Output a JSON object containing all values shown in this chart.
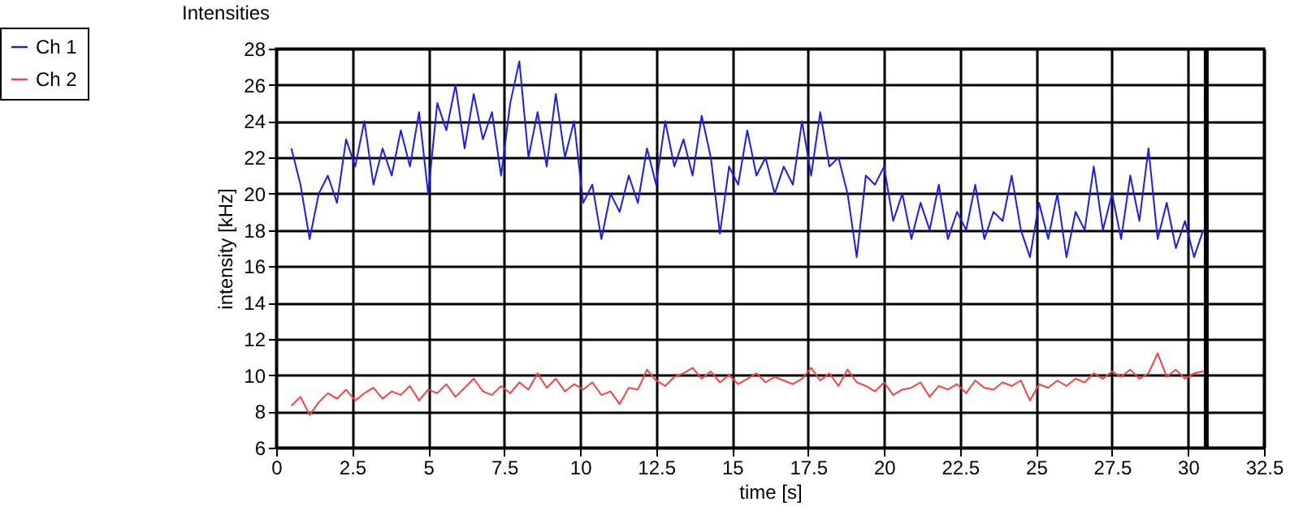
{
  "chart_data": {
    "type": "line",
    "title": "Intensities",
    "xlabel": "time [s]",
    "ylabel": "intensity [kHz]",
    "xlim": [
      0,
      32.5
    ],
    "xticks": [
      0,
      2.5,
      5,
      7.5,
      10,
      12.5,
      15,
      17.5,
      20,
      22.5,
      25,
      27.5,
      30,
      32.5
    ],
    "ylim": [
      6,
      28
    ],
    "yticks": [
      6,
      8,
      10,
      12,
      14,
      16,
      18,
      20,
      22,
      24,
      26,
      28
    ],
    "grid": true,
    "legend": "top left",
    "marker": "none",
    "line_style": "solid",
    "x": [
      0.5,
      0.8,
      1.1,
      1.4,
      1.7,
      2,
      2.3,
      2.6,
      2.9,
      3.2,
      3.5,
      3.8,
      4.1,
      4.4,
      4.7,
      5,
      5.3,
      5.6,
      5.9,
      6.2,
      6.5,
      6.8,
      7.1,
      7.4,
      7.7,
      8,
      8.3,
      8.6,
      8.9,
      9.2,
      9.5,
      9.8,
      10.1,
      10.4,
      10.7,
      11,
      11.3,
      11.6,
      11.9,
      12.2,
      12.5,
      12.8,
      13.1,
      13.4,
      13.7,
      14,
      14.3,
      14.6,
      14.9,
      15.2,
      15.5,
      15.8,
      16.1,
      16.4,
      16.7,
      17,
      17.3,
      17.6,
      17.9,
      18.2,
      18.5,
      18.8,
      19.1,
      19.4,
      19.7,
      20,
      20.3,
      20.6,
      20.9,
      21.2,
      21.5,
      21.8,
      22.1,
      22.4,
      22.7,
      23,
      23.3,
      23.6,
      23.9,
      24.2,
      24.5,
      24.8,
      25.1,
      25.4,
      25.7,
      26,
      26.3,
      26.6,
      26.9,
      27.2,
      27.5,
      27.8,
      28.1,
      28.4,
      28.7,
      29,
      29.3,
      29.6,
      29.9,
      30.2,
      30.5
    ],
    "series": [
      {
        "name": "Ch 1",
        "color": "#1a1aff",
        "values": [
          22.5,
          20.5,
          17.5,
          20,
          21,
          19.5,
          23,
          21.5,
          24,
          20.5,
          22.5,
          21,
          23.5,
          21.5,
          24.5,
          20,
          25,
          23.5,
          26,
          22.5,
          25.5,
          23,
          24.5,
          21,
          25,
          27.3,
          22,
          24.5,
          21.5,
          25.5,
          22,
          24,
          19.5,
          20.5,
          17.5,
          20,
          19,
          21,
          19.5,
          22.5,
          20.5,
          24,
          21.5,
          23,
          21,
          24.3,
          22,
          17.8,
          21.5,
          20.5,
          23.5,
          21,
          22,
          20,
          21.5,
          20.5,
          24,
          21,
          24.5,
          21.5,
          22,
          20,
          16.5,
          21,
          20.5,
          21.5,
          18.5,
          20,
          17.5,
          19.5,
          18,
          20.5,
          17.5,
          19,
          18,
          20.5,
          17.5,
          19,
          18.5,
          21,
          18,
          16.5,
          19.5,
          17.5,
          20,
          16.5,
          19,
          18,
          21.5,
          18,
          20,
          17.5,
          21,
          18.5,
          22.5,
          17.5,
          19.5,
          17,
          18.5,
          16.5,
          18
        ]
      },
      {
        "name": "Ch 2",
        "color": "#ff4040",
        "values": [
          8.3,
          8.8,
          7.8,
          8.5,
          9,
          8.7,
          9.2,
          8.6,
          9,
          9.3,
          8.7,
          9.1,
          8.9,
          9.4,
          8.6,
          9.2,
          9,
          9.5,
          8.8,
          9.3,
          9.8,
          9.1,
          8.9,
          9.4,
          9,
          9.6,
          9.2,
          10.1,
          9.3,
          9.8,
          9.1,
          9.5,
          9.2,
          9.6,
          8.9,
          9.1,
          8.4,
          9.3,
          9.2,
          10.3,
          9.7,
          9.4,
          9.9,
          10.1,
          10.4,
          9.8,
          10.2,
          9.6,
          10,
          9.5,
          9.8,
          10.1,
          9.6,
          9.9,
          9.7,
          9.5,
          9.8,
          10.4,
          9.7,
          10.1,
          9.4,
          10.3,
          9.6,
          9.4,
          9.1,
          9.6,
          8.9,
          9.2,
          9.3,
          9.6,
          8.8,
          9.4,
          9.2,
          9.5,
          9,
          9.7,
          9.3,
          9.2,
          9.6,
          9.4,
          9.7,
          8.6,
          9.5,
          9.3,
          9.7,
          9.4,
          9.8,
          9.6,
          10.1,
          9.8,
          10.2,
          9.9,
          10.3,
          9.8,
          10.1,
          11.2,
          9.9,
          10.3,
          9.8,
          10.1,
          10.2
        ]
      }
    ],
    "ref_lines": [
      {
        "axis": "x",
        "value": 30.6,
        "color": "#000000"
      }
    ]
  }
}
